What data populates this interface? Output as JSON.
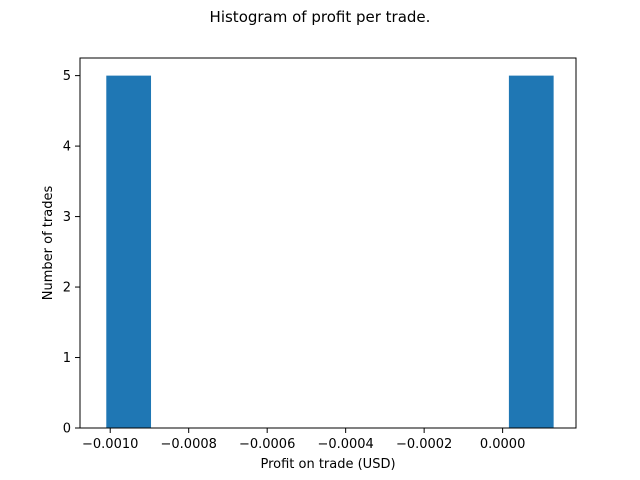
{
  "chart_data": {
    "type": "bar",
    "title": "Histogram of profit per trade.",
    "xlabel": "Profit on trade (USD)",
    "ylabel": "Number of trades",
    "bins": [
      {
        "start": -0.00101,
        "end": -0.000896,
        "count": 5
      },
      {
        "start": -0.000896,
        "end": -0.000782,
        "count": 0
      },
      {
        "start": -0.000782,
        "end": -0.000668,
        "count": 0
      },
      {
        "start": -0.000668,
        "end": -0.000554,
        "count": 0
      },
      {
        "start": -0.000554,
        "end": -0.00044,
        "count": 0
      },
      {
        "start": -0.00044,
        "end": -0.000326,
        "count": 0
      },
      {
        "start": -0.000326,
        "end": -0.000212,
        "count": 0
      },
      {
        "start": -0.000212,
        "end": -9.8e-05,
        "count": 0
      },
      {
        "start": -9.8e-05,
        "end": 1.6e-05,
        "count": 0
      },
      {
        "start": 1.6e-05,
        "end": 0.00013,
        "count": 5
      }
    ],
    "xlim": [
      -0.001077,
      0.000187
    ],
    "ylim": [
      0,
      5.25
    ],
    "xticks": [
      {
        "value": -0.001,
        "label": "−0.0010"
      },
      {
        "value": -0.0008,
        "label": "−0.0008"
      },
      {
        "value": -0.0006,
        "label": "−0.0006"
      },
      {
        "value": -0.0004,
        "label": "−0.0004"
      },
      {
        "value": -0.0002,
        "label": "−0.0002"
      },
      {
        "value": 0.0,
        "label": "0.0000"
      }
    ],
    "yticks": [
      {
        "value": 0,
        "label": "0"
      },
      {
        "value": 1,
        "label": "1"
      },
      {
        "value": 2,
        "label": "2"
      },
      {
        "value": 3,
        "label": "3"
      },
      {
        "value": 4,
        "label": "4"
      },
      {
        "value": 5,
        "label": "5"
      }
    ],
    "grid": false,
    "colors": {
      "bar": "#1f77b4",
      "axis": "#000000",
      "background": "#ffffff"
    }
  }
}
